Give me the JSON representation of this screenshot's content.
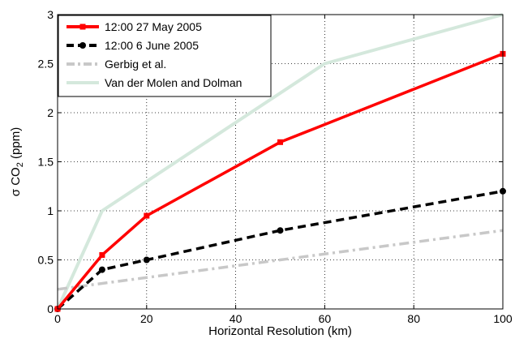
{
  "chart_data": {
    "type": "line",
    "xlabel": "Horizontal Resolution (km)",
    "ylabel": {
      "main": "σ CO",
      "sub": "2",
      "unit": " (ppm)"
    },
    "xlim": [
      0,
      100
    ],
    "ylim": [
      0,
      3
    ],
    "xticks": [
      0,
      20,
      40,
      60,
      80,
      100
    ],
    "yticks": [
      0,
      0.5,
      1,
      1.5,
      2,
      2.5,
      3
    ],
    "xtick_labels": [
      "0",
      "20",
      "40",
      "60",
      "80",
      "100"
    ],
    "ytick_labels": [
      "0",
      "0.5",
      "1",
      "1.5",
      "2",
      "2.5",
      "3"
    ],
    "grid": true,
    "legend_position": "top-left",
    "series": [
      {
        "name": "12:00 27 May 2005",
        "color": "#ff0000",
        "style": "solid",
        "marker": "square",
        "x": [
          0,
          10,
          20,
          50,
          100
        ],
        "y": [
          0,
          0.55,
          0.95,
          1.7,
          2.6
        ]
      },
      {
        "name": "12:00 6 June 2005",
        "color": "#000000",
        "style": "dashed",
        "marker": "circle",
        "x": [
          0,
          10,
          20,
          50,
          100
        ],
        "y": [
          0,
          0.4,
          0.5,
          0.8,
          1.2
        ]
      },
      {
        "name": "Gerbig et al.",
        "color": "#c8c8c8",
        "style": "dashdot",
        "marker": "none",
        "x": [
          0,
          100
        ],
        "y": [
          0.2,
          0.8
        ]
      },
      {
        "name": "Van der Molen and Dolman",
        "color": "#d4e8dc",
        "style": "solid",
        "marker": "none",
        "x": [
          0,
          10,
          60,
          100
        ],
        "y": [
          0,
          1.0,
          2.5,
          3.0
        ]
      }
    ]
  }
}
